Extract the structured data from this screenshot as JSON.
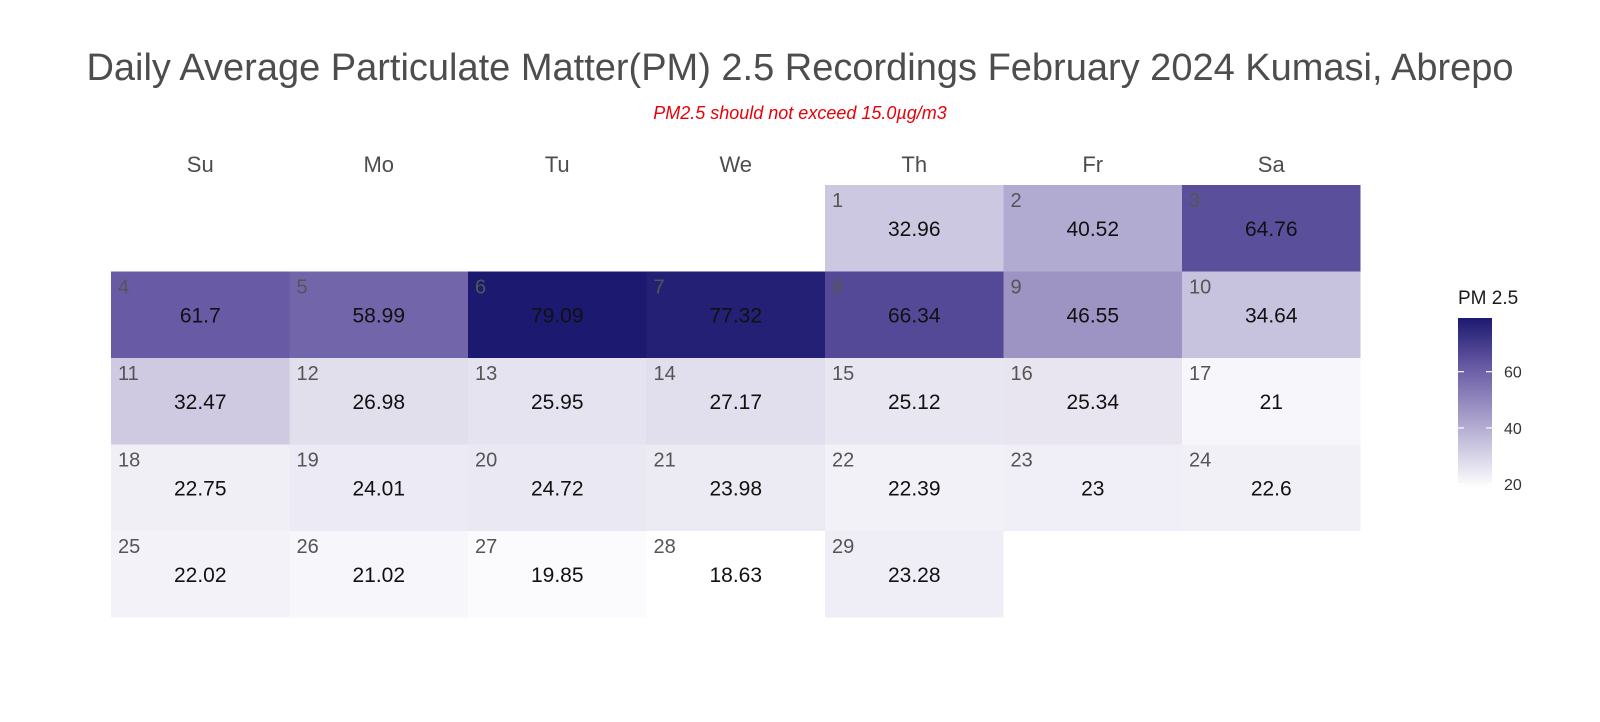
{
  "chart_data": {
    "type": "heatmap",
    "title": "Daily Average Particulate Matter(PM) 2.5 Recordings February 2024 Kumasi, Abrepo",
    "subtitle": "PM2.5 should not exceed 15.0µg/m3",
    "weekdays": [
      "Su",
      "Mo",
      "Tu",
      "We",
      "Th",
      "Fr",
      "Sa"
    ],
    "first_weekday_index": 4,
    "days": [
      {
        "day": "1",
        "value": 32.96,
        "label": "32.96"
      },
      {
        "day": "2",
        "value": 40.52,
        "label": "40.52"
      },
      {
        "day": "3",
        "value": 64.76,
        "label": "64.76"
      },
      {
        "day": "4",
        "value": 61.7,
        "label": "61.7"
      },
      {
        "day": "5",
        "value": 58.99,
        "label": "58.99"
      },
      {
        "day": "6",
        "value": 79.09,
        "label": "79.09"
      },
      {
        "day": "7",
        "value": 77.32,
        "label": "77.32"
      },
      {
        "day": "8",
        "value": 66.34,
        "label": "66.34"
      },
      {
        "day": "9",
        "value": 46.55,
        "label": "46.55"
      },
      {
        "day": "10",
        "value": 34.64,
        "label": "34.64"
      },
      {
        "day": "11",
        "value": 32.47,
        "label": "32.47"
      },
      {
        "day": "12",
        "value": 26.98,
        "label": "26.98"
      },
      {
        "day": "13",
        "value": 25.95,
        "label": "25.95"
      },
      {
        "day": "14",
        "value": 27.17,
        "label": "27.17"
      },
      {
        "day": "15",
        "value": 25.12,
        "label": "25.12"
      },
      {
        "day": "16",
        "value": 25.34,
        "label": "25.34"
      },
      {
        "day": "17",
        "value": 21,
        "label": "21"
      },
      {
        "day": "18",
        "value": 22.75,
        "label": "22.75"
      },
      {
        "day": "19",
        "value": 24.01,
        "label": "24.01"
      },
      {
        "day": "20",
        "value": 24.72,
        "label": "24.72"
      },
      {
        "day": "21",
        "value": 23.98,
        "label": "23.98"
      },
      {
        "day": "22",
        "value": 22.39,
        "label": "22.39"
      },
      {
        "day": "23",
        "value": 23,
        "label": "23"
      },
      {
        "day": "24",
        "value": 22.6,
        "label": "22.6"
      },
      {
        "day": "25",
        "value": 22.02,
        "label": "22.02"
      },
      {
        "day": "26",
        "value": 21.02,
        "label": "21.02"
      },
      {
        "day": "27",
        "value": 19.85,
        "label": "19.85"
      },
      {
        "day": "28",
        "value": 18.63,
        "label": "18.63"
      },
      {
        "day": "29",
        "value": 23.28,
        "label": "23.28"
      }
    ],
    "legend": {
      "title": "PM 2.5",
      "ticks": [
        {
          "value": 20,
          "label": "20"
        },
        {
          "value": 40,
          "label": "40"
        },
        {
          "value": 60,
          "label": "60"
        }
      ],
      "placement": "right"
    },
    "color_scale": {
      "min_value": 18.63,
      "max_value": 79.09,
      "low_color": "#ffffff",
      "high_color": "#1c1970"
    },
    "grid": false
  }
}
